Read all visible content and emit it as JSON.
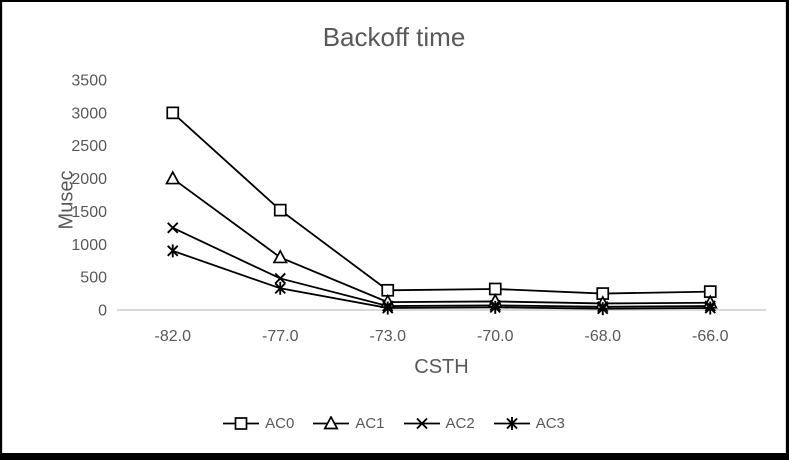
{
  "frame": {
    "outer_border_color": "#000000",
    "canvas_background": "#ffffff",
    "canvas_border_color": "#d9d9d9"
  },
  "chart_data": {
    "type": "line",
    "title": "Backoff time",
    "xlabel": "CSTH",
    "ylabel": "Musec",
    "categories": [
      "-82.0",
      "-77.0",
      "-73.0",
      "-70.0",
      "-68.0",
      "-66.0"
    ],
    "series": [
      {
        "name": "AC0",
        "marker": "square",
        "values": [
          3000,
          1520,
          300,
          320,
          250,
          280
        ]
      },
      {
        "name": "AC1",
        "marker": "triangle",
        "values": [
          2000,
          800,
          120,
          130,
          100,
          110
        ]
      },
      {
        "name": "AC2",
        "marker": "x",
        "values": [
          1250,
          480,
          60,
          70,
          50,
          60
        ]
      },
      {
        "name": "AC3",
        "marker": "star",
        "values": [
          900,
          330,
          30,
          40,
          20,
          30
        ]
      }
    ],
    "ylim": [
      0,
      3500
    ],
    "y_ticks": [
      0,
      500,
      1000,
      1500,
      2000,
      2500,
      3000,
      3500
    ],
    "grid": false,
    "legend_position": "bottom",
    "colors": {
      "line": "#000000",
      "marker_fill": "#ffffff",
      "text": "#595959",
      "axis_line": "#d9d9d9"
    }
  }
}
